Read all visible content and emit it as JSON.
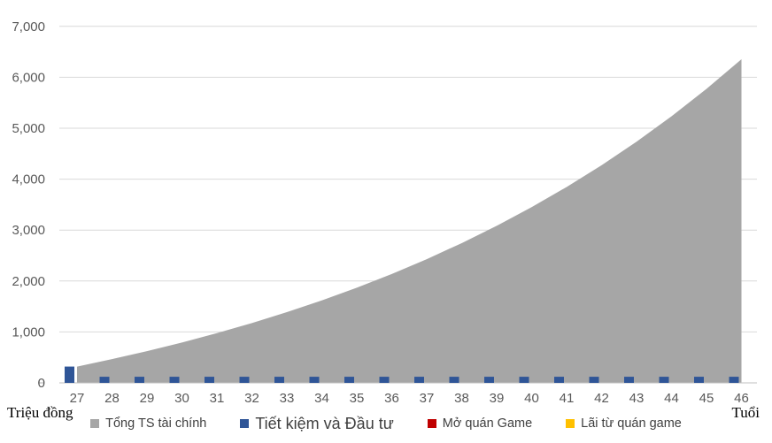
{
  "chart_data": {
    "type": "combo",
    "x": [
      27,
      28,
      29,
      30,
      31,
      32,
      33,
      34,
      35,
      36,
      37,
      38,
      39,
      40,
      41,
      42,
      43,
      44,
      45,
      46
    ],
    "series": [
      {
        "name": "Tổng TS tài chính",
        "chart_type": "area",
        "color": "#A6A6A6",
        "values": [
          320,
          466,
          623,
          793,
          976,
          1174,
          1388,
          1619,
          1869,
          2138,
          2429,
          2744,
          3083,
          3450,
          3846,
          4273,
          4735,
          5234,
          5773,
          6355
        ]
      },
      {
        "name": "Tiết kiệm và Đầu tư",
        "chart_type": "column",
        "color": "#2F5597",
        "values": [
          320,
          120,
          120,
          120,
          120,
          120,
          120,
          120,
          120,
          120,
          120,
          120,
          120,
          120,
          120,
          120,
          120,
          120,
          120,
          120
        ]
      },
      {
        "name": "Mở quán Game",
        "chart_type": "column",
        "color": "#C00000",
        "values": [
          0,
          0,
          0,
          0,
          0,
          0,
          0,
          0,
          0,
          0,
          0,
          0,
          0,
          0,
          0,
          0,
          0,
          0,
          0,
          0
        ]
      },
      {
        "name": "Lãi từ quán game",
        "chart_type": "column",
        "color": "#FFC000",
        "values": [
          0,
          0,
          0,
          0,
          0,
          0,
          0,
          0,
          0,
          0,
          0,
          0,
          0,
          0,
          0,
          0,
          0,
          0,
          0,
          0
        ]
      }
    ],
    "title": "",
    "xlabel": "Tuổi",
    "ylabel": "Triệu đồng",
    "ylim": [
      0,
      7000
    ],
    "ytick_step": 1000,
    "yticklabels": [
      "0",
      "1,000",
      "2,000",
      "3,000",
      "4,000",
      "5,000",
      "6,000",
      "7,000"
    ],
    "grid": "horizontal",
    "legend_position": "bottom",
    "colors": {
      "gridline": "#D9D9D9",
      "axis_line": "#BFBFBF",
      "tick_text": "#595959",
      "axis_title_text": "#000000"
    }
  }
}
